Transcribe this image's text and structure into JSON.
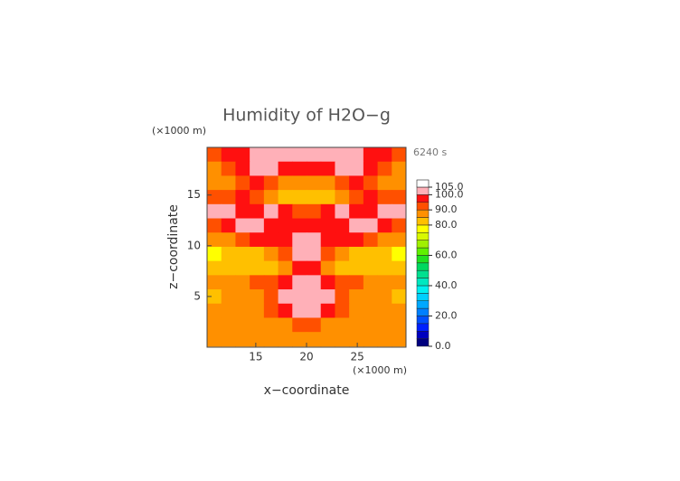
{
  "chart_data": {
    "type": "heatmap",
    "title": "Humidity of H2O−g",
    "x_unit": "(×1000 m)",
    "y_unit": "(×1000 m)",
    "time_label": "6240 s",
    "x_label": "x−coordinate",
    "y_label": "z−coordinate",
    "xlim": [
      10.2,
      29.8
    ],
    "ylim": [
      0,
      19.7
    ],
    "xticks": [
      15,
      20,
      25
    ],
    "yticks": [
      5,
      10,
      15
    ],
    "x": [
      10.9,
      12.3,
      13.7,
      15.1,
      16.5,
      17.9,
      19.3,
      20.7,
      22.1,
      23.5,
      24.9,
      26.3,
      27.7,
      29.1
    ],
    "y": [
      19.0,
      17.6,
      16.2,
      14.8,
      13.4,
      12.0,
      10.6,
      9.2,
      7.8,
      6.4,
      5.0,
      3.6,
      2.2,
      0.8
    ],
    "z": [
      [
        92,
        96,
        98,
        102,
        102,
        102,
        102,
        102,
        102,
        102,
        102,
        98,
        96,
        92
      ],
      [
        88,
        92,
        97,
        102,
        101,
        96,
        96,
        96,
        96,
        101,
        102,
        97,
        92,
        88
      ],
      [
        86,
        88,
        92,
        96,
        94,
        88,
        86,
        86,
        88,
        94,
        96,
        92,
        88,
        86
      ],
      [
        90,
        94,
        96,
        92,
        88,
        84,
        82,
        82,
        84,
        88,
        92,
        96,
        94,
        90
      ],
      [
        102,
        102,
        97,
        98,
        102,
        96,
        92,
        92,
        96,
        102,
        98,
        97,
        102,
        102
      ],
      [
        94,
        96,
        102,
        102,
        98,
        97,
        97,
        97,
        97,
        98,
        102,
        102,
        96,
        94
      ],
      [
        86,
        88,
        92,
        96,
        97,
        97,
        102,
        102,
        97,
        97,
        96,
        92,
        88,
        86
      ],
      [
        78,
        82,
        82,
        84,
        88,
        92,
        102,
        102,
        92,
        88,
        84,
        82,
        82,
        78
      ],
      [
        80,
        82,
        82,
        82,
        84,
        86,
        96,
        96,
        86,
        84,
        82,
        82,
        82,
        80
      ],
      [
        86,
        88,
        88,
        90,
        92,
        96,
        102,
        102,
        96,
        92,
        90,
        88,
        88,
        86
      ],
      [
        84,
        86,
        88,
        86,
        92,
        102,
        102,
        102,
        102,
        92,
        86,
        88,
        86,
        84
      ],
      [
        86,
        88,
        86,
        88,
        90,
        96,
        102,
        102,
        96,
        90,
        88,
        86,
        88,
        86
      ],
      [
        88,
        86,
        88,
        88,
        86,
        88,
        94,
        94,
        88,
        86,
        88,
        88,
        86,
        88
      ],
      [
        86,
        88,
        86,
        86,
        88,
        86,
        88,
        88,
        86,
        88,
        86,
        86,
        88,
        86
      ]
    ],
    "levels": [
      0,
      5,
      10,
      15,
      20,
      25,
      30,
      35,
      40,
      45,
      50,
      55,
      60,
      65,
      70,
      75,
      80,
      85,
      90,
      95,
      100,
      105
    ],
    "colors": [
      "#00007f",
      "#0000bf",
      "#0020ff",
      "#0050ff",
      "#0080ff",
      "#00a8ff",
      "#00d0ff",
      "#00f0f0",
      "#00e8c0",
      "#00e090",
      "#00d860",
      "#20e020",
      "#60f000",
      "#a0f000",
      "#d8f800",
      "#ffff00",
      "#ffc000",
      "#ff9000",
      "#ff5000",
      "#ff1010",
      "#ffb0b8"
    ],
    "colorbar_ticks": [
      {
        "value": 0,
        "label": "0.0"
      },
      {
        "value": 20,
        "label": "20.0"
      },
      {
        "value": 40,
        "label": "40.0"
      },
      {
        "value": 60,
        "label": "60.0"
      },
      {
        "value": 80,
        "label": "80.0"
      },
      {
        "value": 90,
        "label": "90.0"
      },
      {
        "value": 100,
        "label": "100.0"
      },
      {
        "value": 105,
        "label": "105.0"
      }
    ]
  }
}
